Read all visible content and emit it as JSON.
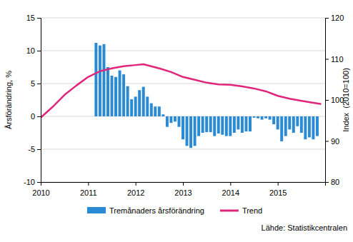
{
  "chart_data": {
    "type": "bar",
    "y_label": "Årsförändring, %",
    "y2_label": "Index  (2010=100)",
    "annotations": [
      "Lähde: Statistikcentralen"
    ],
    "xlim": [
      2010,
      2016
    ],
    "xticks": [
      2010,
      2011,
      2012,
      2013,
      2014,
      2015
    ],
    "ylim": [
      -10,
      15
    ],
    "yticks": [
      -10,
      -5,
      0,
      5,
      10,
      15
    ],
    "y2lim": [
      80,
      120
    ],
    "y2ticks": [
      80,
      90,
      100,
      110,
      120
    ],
    "grid": true,
    "legend": "bottom",
    "series": [
      {
        "name": "Tremånaders årsförändring",
        "type": "bar",
        "color": "#2a8ad4",
        "x": [
          2011.1667,
          2011.25,
          2011.3333,
          2011.4167,
          2011.5,
          2011.5833,
          2011.6667,
          2011.75,
          2011.8333,
          2011.9167,
          2012.0,
          2012.0833,
          2012.1667,
          2012.25,
          2012.3333,
          2012.4167,
          2012.5,
          2012.5833,
          2012.6667,
          2012.75,
          2012.8333,
          2012.9167,
          2013.0,
          2013.0833,
          2013.1667,
          2013.25,
          2013.3333,
          2013.4167,
          2013.5,
          2013.5833,
          2013.6667,
          2013.75,
          2013.8333,
          2013.9167,
          2014.0,
          2014.0833,
          2014.1667,
          2014.25,
          2014.3333,
          2014.4167,
          2014.5,
          2014.5833,
          2014.6667,
          2014.75,
          2014.8333,
          2014.9167,
          2015.0,
          2015.0833,
          2015.1667,
          2015.25,
          2015.3333,
          2015.4167,
          2015.5,
          2015.5833,
          2015.6667,
          2015.75,
          2015.8333
        ],
        "values": [
          11.2,
          10.8,
          11.0,
          7.5,
          6.2,
          6.0,
          7.0,
          6.4,
          4.6,
          2.6,
          3.0,
          4.0,
          4.5,
          3.0,
          2.0,
          1.5,
          1.5,
          0.3,
          -1.6,
          -1.0,
          -0.8,
          -1.6,
          -3.5,
          -4.5,
          -4.8,
          -4.5,
          -3.0,
          -2.5,
          -2.4,
          -2.4,
          -3.0,
          -2.6,
          -2.8,
          -3.0,
          -3.0,
          -2.5,
          -2.0,
          -2.5,
          -2.3,
          -2.3,
          -0.2,
          -0.3,
          -0.5,
          -0.3,
          -0.5,
          -1.2,
          -2.0,
          -3.8,
          -3.0,
          -2.0,
          -2.5,
          -1.5,
          -2.5,
          -3.5,
          -3.2,
          -3.5,
          -3.0
        ]
      },
      {
        "name": "Trend",
        "type": "line",
        "axis": "y2",
        "color": "#e0267a",
        "x": [
          2010.0,
          2010.25,
          2010.5,
          2010.75,
          2011.0,
          2011.25,
          2011.5,
          2011.75,
          2012.0,
          2012.1667,
          2012.5,
          2012.75,
          2013.0,
          2013.25,
          2013.5,
          2013.75,
          2014.0,
          2014.25,
          2014.5,
          2014.75,
          2015.0,
          2015.25,
          2015.5,
          2015.75,
          2015.9167
        ],
        "values": [
          95.7,
          98.3,
          101.2,
          103.5,
          105.6,
          107.0,
          107.7,
          108.2,
          108.5,
          108.7,
          107.7,
          106.8,
          105.6,
          104.9,
          104.2,
          103.8,
          103.7,
          103.3,
          102.8,
          102.1,
          101.0,
          100.3,
          99.8,
          99.3,
          99.0
        ]
      }
    ]
  }
}
